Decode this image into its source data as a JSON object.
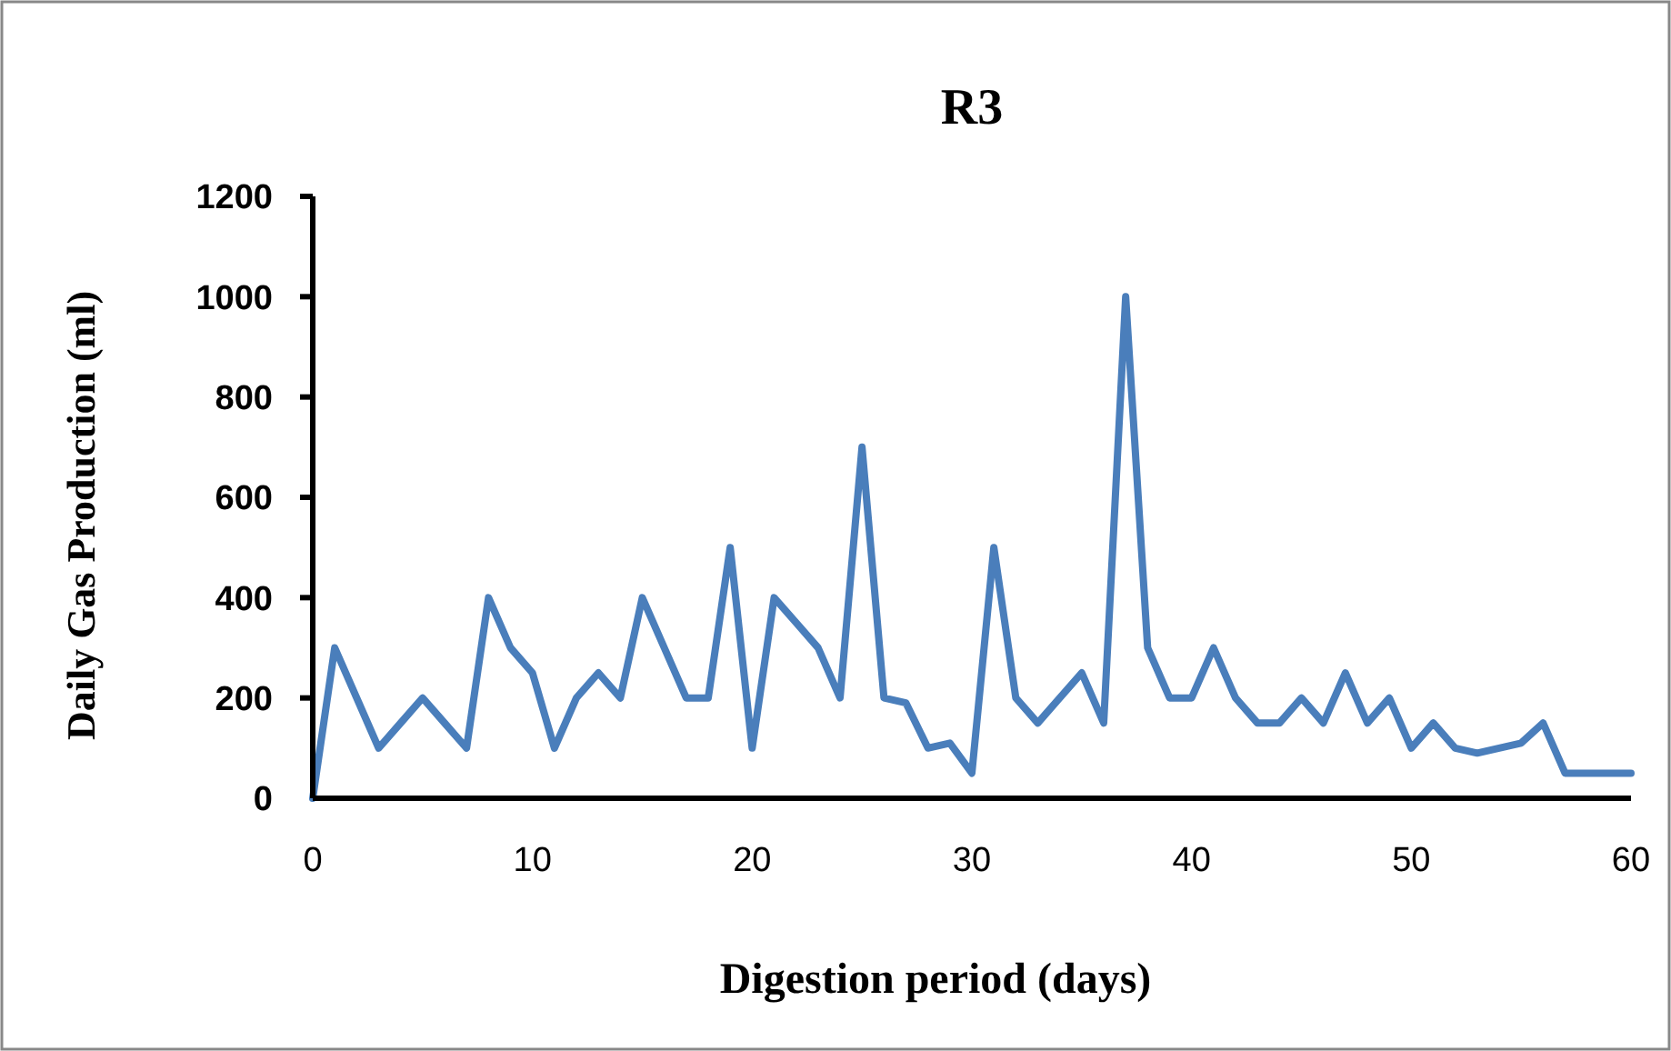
{
  "chart_data": {
    "type": "line",
    "title": "R3",
    "xlabel": "Digestion period (days)",
    "ylabel": "Daily Gas Production (ml)",
    "x": [
      0,
      1,
      2,
      3,
      4,
      5,
      6,
      7,
      8,
      9,
      10,
      11,
      12,
      13,
      14,
      15,
      16,
      17,
      18,
      19,
      20,
      21,
      22,
      23,
      24,
      25,
      26,
      27,
      28,
      29,
      30,
      31,
      32,
      33,
      34,
      35,
      36,
      37,
      38,
      39,
      40,
      41,
      42,
      43,
      44,
      45,
      46,
      47,
      48,
      49,
      50,
      51,
      52,
      53,
      54,
      55,
      56,
      57,
      58,
      59,
      60
    ],
    "series": [
      {
        "color": "#4a7ebb",
        "values": [
          0,
          300,
          200,
          100,
          150,
          200,
          150,
          100,
          400,
          300,
          250,
          100,
          200,
          250,
          200,
          400,
          300,
          200,
          200,
          500,
          100,
          400,
          350,
          300,
          200,
          700,
          200,
          190,
          100,
          110,
          50,
          500,
          200,
          150,
          200,
          250,
          150,
          1000,
          300,
          200,
          200,
          300,
          200,
          150,
          150,
          200,
          150,
          250,
          150,
          200,
          100,
          150,
          100,
          90,
          100,
          110,
          150,
          50,
          50,
          50,
          50
        ]
      }
    ],
    "xlim": [
      0,
      60
    ],
    "xticks": [
      0,
      10,
      20,
      30,
      40,
      50,
      60
    ],
    "ylim": [
      0,
      1200
    ],
    "yticks": [
      0,
      200,
      400,
      600,
      800,
      1000,
      1200
    ],
    "grid": false,
    "marker": "none",
    "line_style": "solid"
  }
}
